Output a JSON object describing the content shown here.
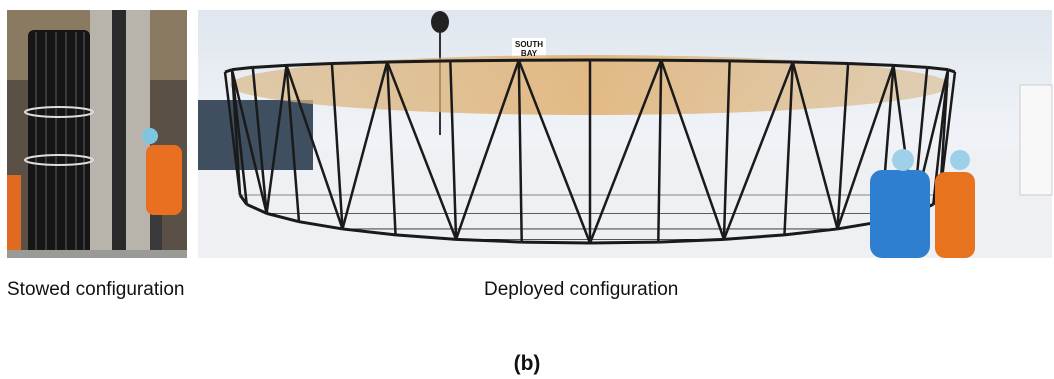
{
  "panels": [
    {
      "caption": "Stowed configuration"
    },
    {
      "caption": "Deployed configuration",
      "sign": [
        "SOUTH",
        "BAY"
      ]
    }
  ],
  "label": "(b)"
}
